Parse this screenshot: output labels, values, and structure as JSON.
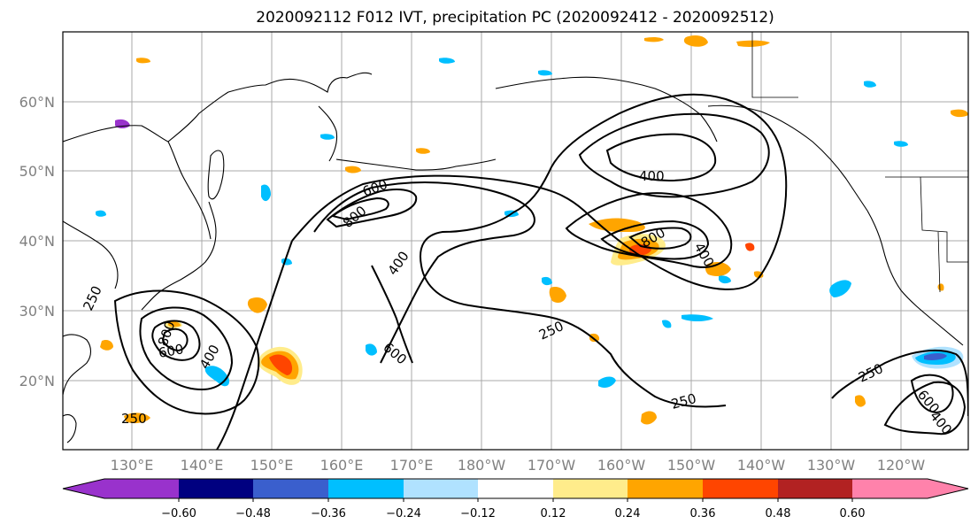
{
  "title": "2020092112 F012 IVT, precipitation PC (2020092412 - 2020092512)",
  "lat_labels": [
    "60°N",
    "50°N",
    "40°N",
    "30°N",
    "20°N"
  ],
  "lon_labels": [
    "130°E",
    "140°E",
    "150°E",
    "160°E",
    "170°E",
    "180°W",
    "170°W",
    "160°W",
    "150°W",
    "140°W",
    "130°W",
    "120°W"
  ],
  "contour_labels": [
    "250",
    "250",
    "250",
    "250",
    "250",
    "400",
    "400",
    "400",
    "400",
    "400",
    "600",
    "600",
    "600",
    "600",
    "800",
    "800",
    "800"
  ],
  "colorbar": {
    "colors": [
      "#9932cc",
      "#000080",
      "#3a5fcd",
      "#00bfff",
      "#b0e2ff",
      "#ffffff",
      "#ffec8b",
      "#ffa500",
      "#ff4500",
      "#b22222",
      "#ff82ab"
    ],
    "tick_labels": [
      "-0.60",
      "-0.48",
      "-0.36",
      "-0.24",
      "-0.12",
      "0.12",
      "0.24",
      "0.36",
      "0.48",
      "0.60"
    ]
  },
  "shading_colors": {
    "neg_light": "#b0e2ff",
    "neg_mid": "#00bfff",
    "neg_strong": "#3a5fcd",
    "pos_light": "#ffec8b",
    "pos_mid": "#ffa500",
    "pos_strong": "#ff4500"
  }
}
